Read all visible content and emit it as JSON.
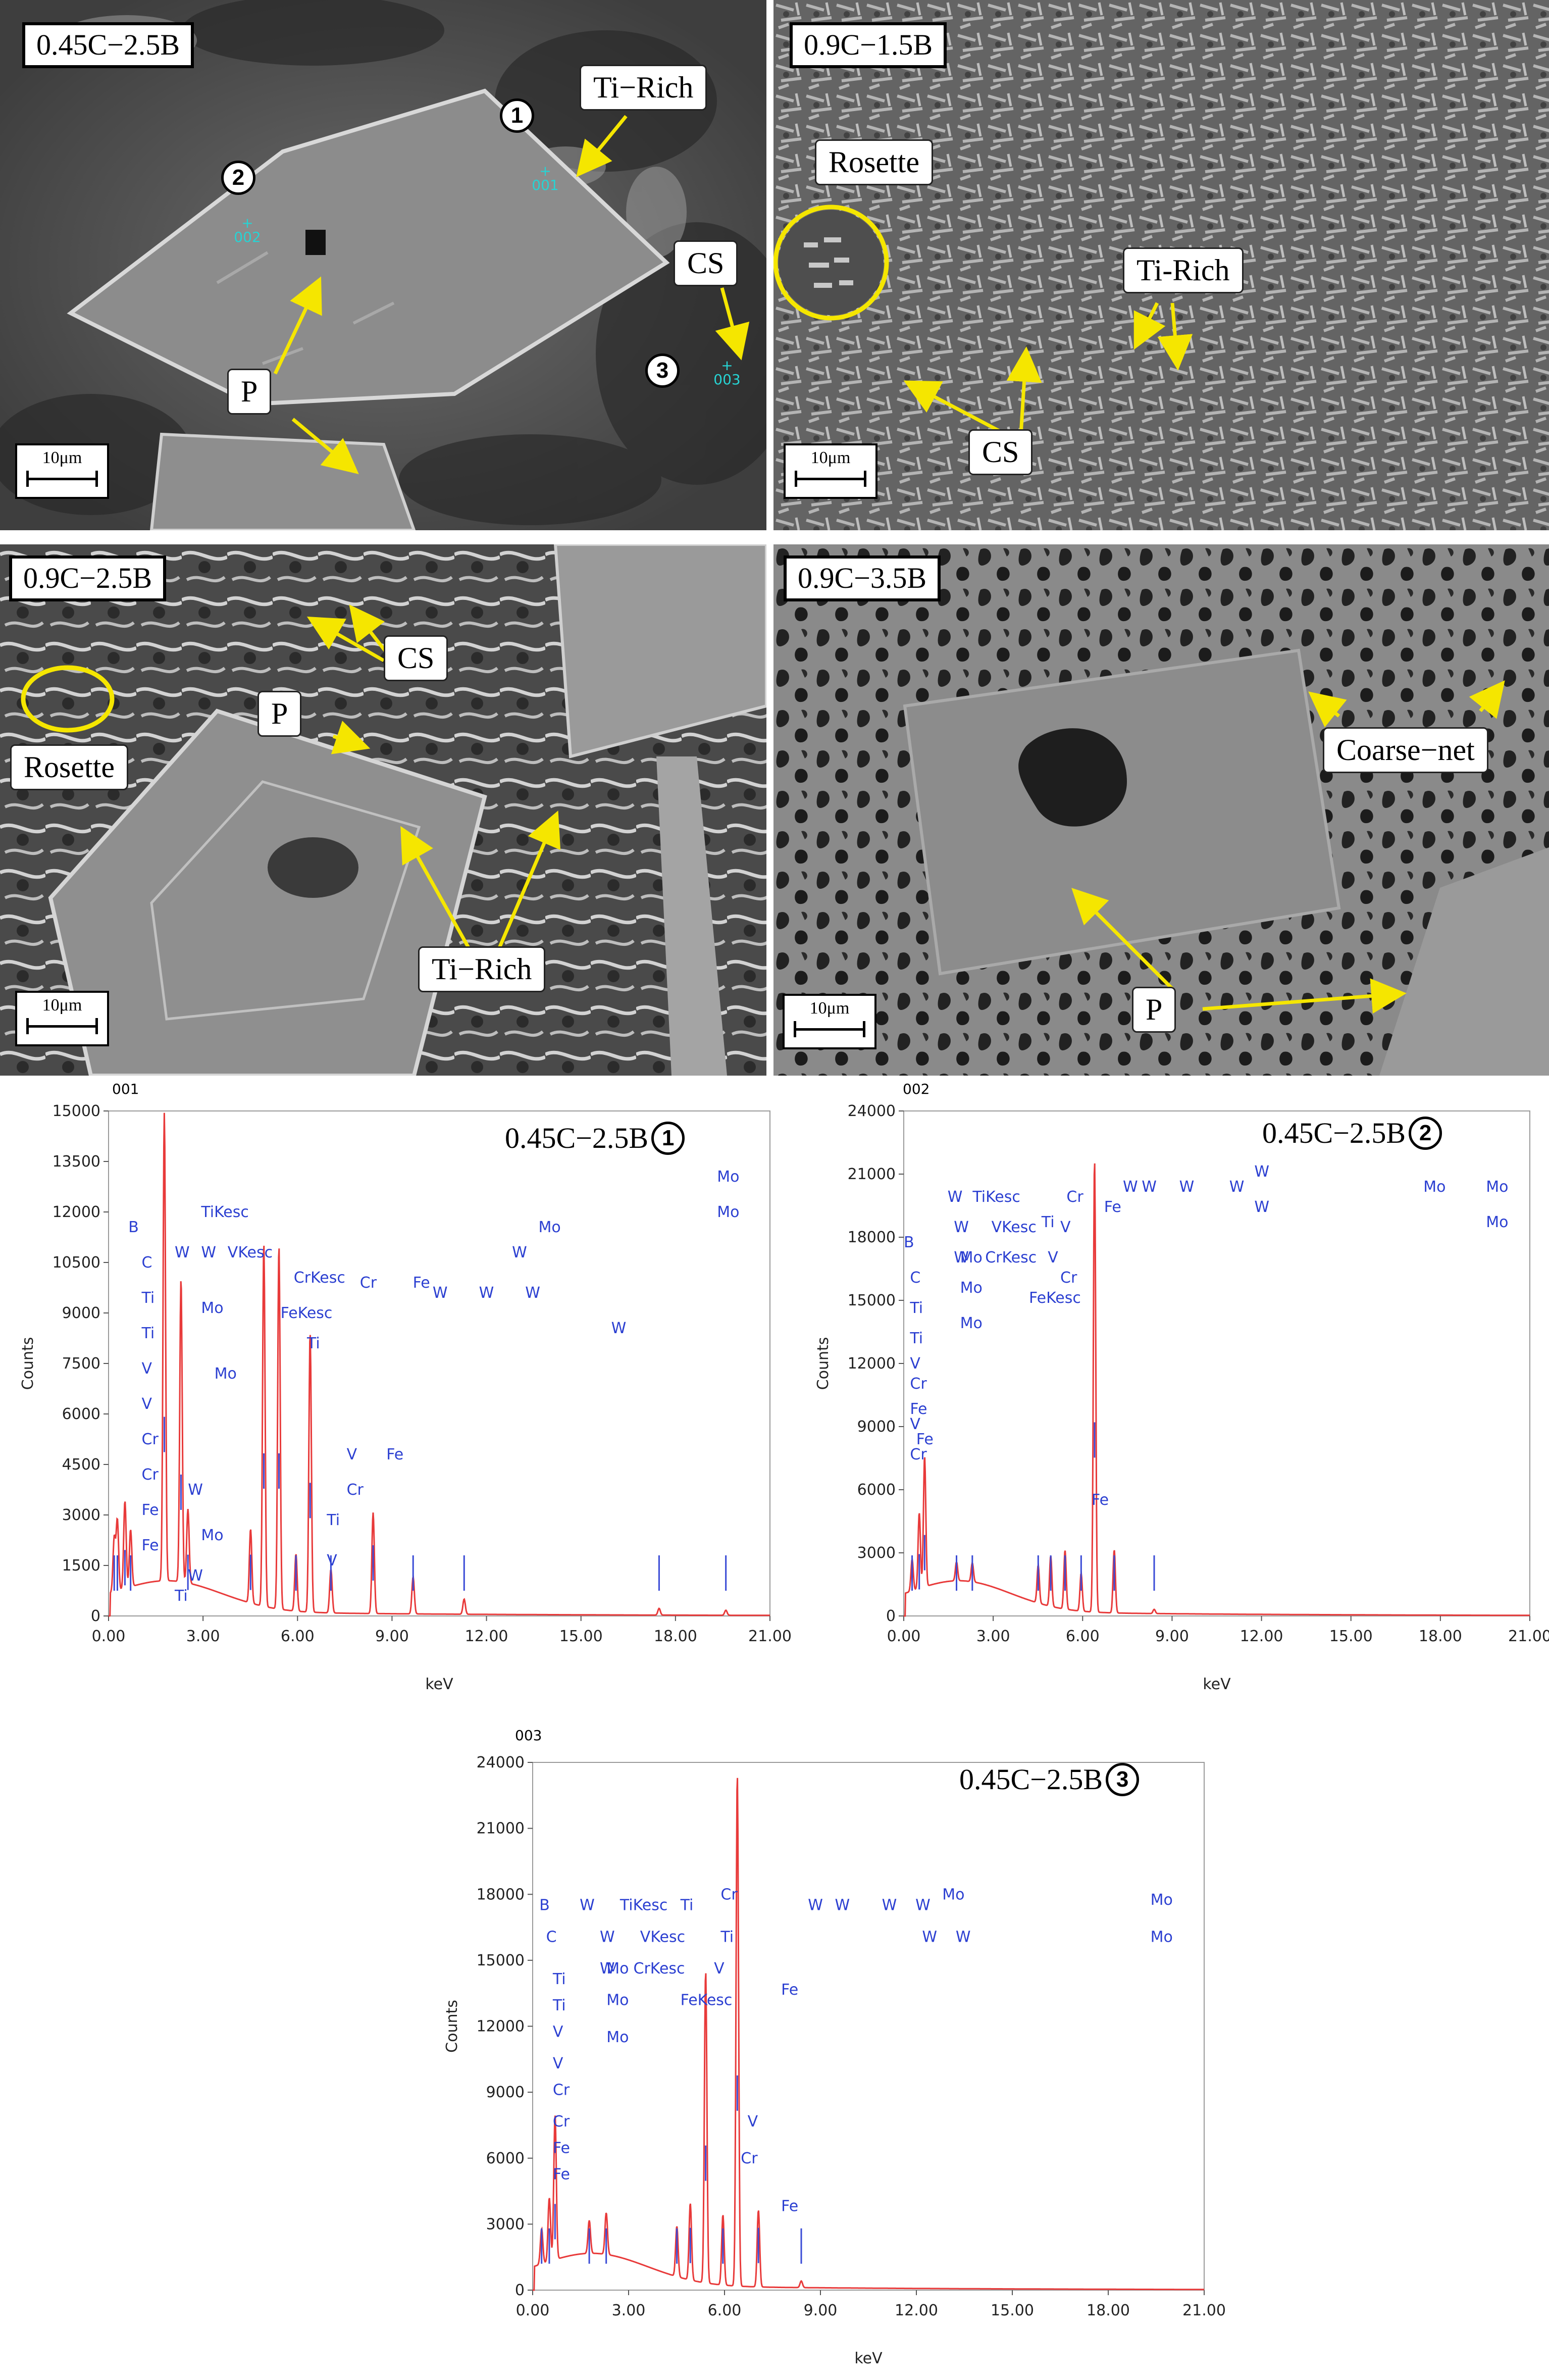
{
  "sem_panels": [
    {
      "label": "0.45C−2.5B",
      "callouts": [
        "Ti−Rich",
        "CS",
        "P"
      ],
      "points": [
        {
          "num": "1",
          "mark": "001"
        },
        {
          "num": "2",
          "mark": "002"
        },
        {
          "num": "3",
          "mark": "003"
        }
      ],
      "scale": "10μm"
    },
    {
      "label": "0.9C−1.5B",
      "callouts": [
        "Rosette",
        "Ti-Rich",
        "CS"
      ],
      "scale": "10μm"
    },
    {
      "label": "0.9C−2.5B",
      "callouts": [
        "CS",
        "P",
        "Rosette",
        "Ti−Rich"
      ],
      "scale": "10μm"
    },
    {
      "label": "0.9C−3.5B",
      "callouts": [
        "Coarse−net",
        "P"
      ],
      "scale": "10μm"
    }
  ],
  "spectra": [
    {
      "id": "001",
      "label": "0.45C−2.5B",
      "point": "1",
      "xlabel": "keV",
      "ylabel": "Counts",
      "xticks": [
        "0.00",
        "3.00",
        "6.00",
        "9.00",
        "12.00",
        "15.00",
        "18.00",
        "21.00"
      ],
      "yticks": [
        "0",
        "1500",
        "3000",
        "4500",
        "6000",
        "7500",
        "9000",
        "10500",
        "12000",
        "13500",
        "15000"
      ],
      "element_labels": [
        "Ti",
        "W",
        "Fe",
        "Fe",
        "Cr",
        "Cr",
        "V",
        "V",
        "Ti",
        "Ti",
        "C",
        "B",
        "Mo",
        "W",
        "Mo",
        "Mo",
        "W",
        "W",
        "TiKesc",
        "CrKesc",
        "VKesc",
        "V",
        "Ti",
        "Cr",
        "V",
        "Fe",
        "FeKesc",
        "Ti",
        "Cr",
        "Fe",
        "W",
        "W",
        "W",
        "W",
        "W",
        "Mo",
        "Mo",
        "Mo"
      ]
    },
    {
      "id": "002",
      "label": "0.45C−2.5B",
      "point": "2",
      "xlabel": "keV",
      "ylabel": "Counts",
      "xticks": [
        "0.00",
        "3.00",
        "6.00",
        "9.00",
        "12.00",
        "15.00",
        "18.00",
        "21.00"
      ],
      "yticks": [
        "0",
        "3000",
        "6000",
        "9000",
        "12000",
        "15000",
        "18000",
        "21000",
        "24000"
      ],
      "element_labels": [
        "Cr",
        "Fe",
        "V",
        "Fe",
        "Cr",
        "V",
        "Ti",
        "Ti",
        "C",
        "B",
        "Mo",
        "Mo",
        "W",
        "Mo",
        "W",
        "CrKesc",
        "VKesc",
        "TiKesc",
        "W",
        "FeKesc",
        "Cr",
        "V",
        "Ti",
        "V",
        "Cr",
        "Fe",
        "Fe",
        "W",
        "W",
        "W",
        "W",
        "W",
        "W",
        "Mo",
        "Mo",
        "Mo"
      ]
    },
    {
      "id": "003",
      "label": "0.45C−2.5B",
      "point": "3",
      "xlabel": "keV",
      "ylabel": "Counts",
      "xticks": [
        "0.00",
        "3.00",
        "6.00",
        "9.00",
        "12.00",
        "15.00",
        "18.00",
        "21.00"
      ],
      "yticks": [
        "0",
        "3000",
        "6000",
        "9000",
        "12000",
        "15000",
        "18000",
        "21000",
        "24000"
      ],
      "element_labels": [
        "Fe",
        "Fe",
        "Cr",
        "Cr",
        "V",
        "V",
        "Ti",
        "Ti",
        "C",
        "B",
        "Mo",
        "Mo",
        "W",
        "Mo",
        "W",
        "CrKesc",
        "VKesc",
        "TiKesc",
        "W",
        "Ti",
        "FeKesc",
        "V",
        "Ti",
        "Cr",
        "Cr",
        "V",
        "Fe",
        "Fe",
        "W",
        "W",
        "W",
        "W",
        "W",
        "W",
        "Mo",
        "Mo",
        "Mo"
      ]
    }
  ],
  "chart_data": [
    {
      "type": "line",
      "xlabel": "keV",
      "ylabel": "Counts",
      "xlim": [
        0,
        21
      ],
      "ylim": [
        0,
        15000
      ],
      "peaks": [
        {
          "x": 0.18,
          "y": 1600
        },
        {
          "x": 0.28,
          "y": 2100
        },
        {
          "x": 0.52,
          "y": 2600
        },
        {
          "x": 0.7,
          "y": 1700
        },
        {
          "x": 1.77,
          "y": 13900
        },
        {
          "x": 2.3,
          "y": 9000
        },
        {
          "x": 2.52,
          "y": 2200
        },
        {
          "x": 4.51,
          "y": 2200
        },
        {
          "x": 4.93,
          "y": 10800
        },
        {
          "x": 5.41,
          "y": 10800
        },
        {
          "x": 5.95,
          "y": 1700
        },
        {
          "x": 6.4,
          "y": 8300
        },
        {
          "x": 7.06,
          "y": 1300
        },
        {
          "x": 8.4,
          "y": 3000
        },
        {
          "x": 9.67,
          "y": 1100
        },
        {
          "x": 11.29,
          "y": 450
        },
        {
          "x": 17.48,
          "y": 200
        },
        {
          "x": 19.6,
          "y": 150
        }
      ]
    },
    {
      "type": "line",
      "xlabel": "keV",
      "ylabel": "Counts",
      "xlim": [
        0,
        21
      ],
      "ylim": [
        0,
        24000
      ],
      "peaks": [
        {
          "x": 0.28,
          "y": 1500
        },
        {
          "x": 0.52,
          "y": 3600
        },
        {
          "x": 0.7,
          "y": 6200
        },
        {
          "x": 1.77,
          "y": 900
        },
        {
          "x": 2.3,
          "y": 900
        },
        {
          "x": 4.51,
          "y": 1800
        },
        {
          "x": 4.93,
          "y": 2400
        },
        {
          "x": 5.41,
          "y": 2800
        },
        {
          "x": 5.95,
          "y": 1800
        },
        {
          "x": 6.4,
          "y": 21500
        },
        {
          "x": 7.06,
          "y": 3000
        },
        {
          "x": 8.4,
          "y": 200
        }
      ]
    },
    {
      "type": "line",
      "xlabel": "keV",
      "ylabel": "Counts",
      "xlim": [
        0,
        21
      ],
      "ylim": [
        0,
        24000
      ],
      "peaks": [
        {
          "x": 0.28,
          "y": 1600
        },
        {
          "x": 0.52,
          "y": 2900
        },
        {
          "x": 0.7,
          "y": 6600
        },
        {
          "x": 1.77,
          "y": 1500
        },
        {
          "x": 2.3,
          "y": 1900
        },
        {
          "x": 4.51,
          "y": 2300
        },
        {
          "x": 4.93,
          "y": 3500
        },
        {
          "x": 5.41,
          "y": 14200
        },
        {
          "x": 5.95,
          "y": 3200
        },
        {
          "x": 6.4,
          "y": 23300
        },
        {
          "x": 7.06,
          "y": 3500
        },
        {
          "x": 8.4,
          "y": 300
        }
      ]
    }
  ]
}
